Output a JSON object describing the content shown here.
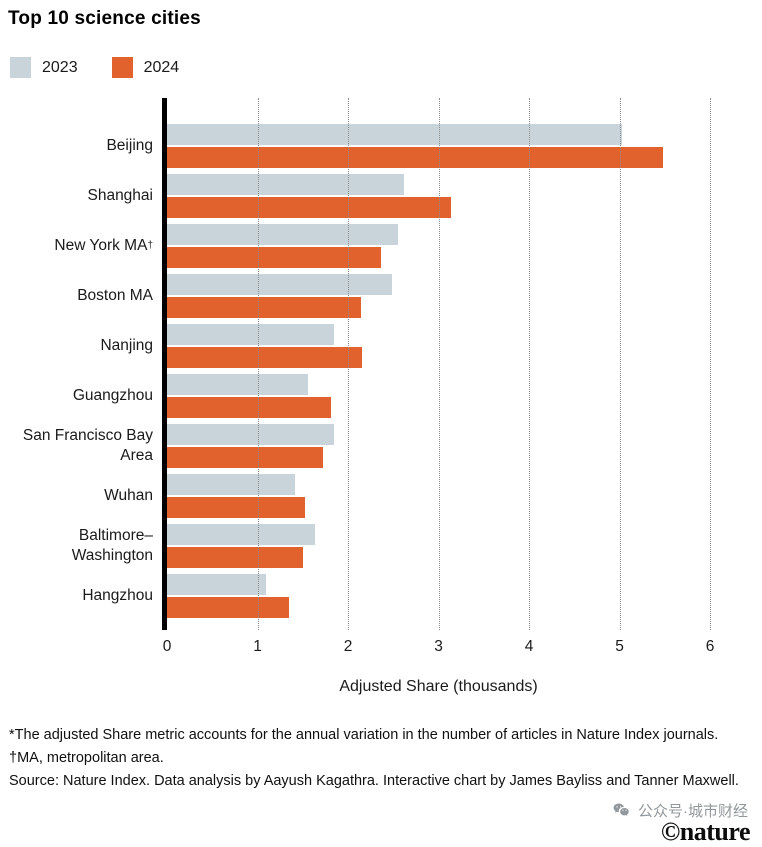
{
  "header": {
    "title": "Top 10 science cities"
  },
  "legend": [
    {
      "label": "2023",
      "color": "#c9d3da"
    },
    {
      "label": "2024",
      "color": "#e2622d"
    }
  ],
  "chart_data": {
    "type": "bar",
    "orientation": "horizontal",
    "title": "Top 10 science cities",
    "categories": [
      "Beijing",
      "Shanghai",
      "New York MA†",
      "Boston MA",
      "Nanjing",
      "Guangzhou",
      "San Francisco Bay Area",
      "Wuhan",
      "Baltimore–Washington",
      "Hangzhou"
    ],
    "series": [
      {
        "name": "2023",
        "color": "#c9d3da",
        "values": [
          5.03,
          2.62,
          2.55,
          2.49,
          1.84,
          1.56,
          1.85,
          1.41,
          1.64,
          1.09
        ]
      },
      {
        "name": "2024",
        "color": "#e2622d",
        "values": [
          5.48,
          3.14,
          2.36,
          2.14,
          2.15,
          1.81,
          1.72,
          1.52,
          1.5,
          1.35
        ]
      }
    ],
    "xlabel": "Adjusted Share (thousands)",
    "xlim": [
      0,
      6
    ],
    "xticks": [
      0,
      1,
      2,
      3,
      4,
      5,
      6
    ],
    "grid": "dotted-vertical",
    "legend_position": "top-left"
  },
  "footnotes": [
    "*The adjusted Share metric accounts for the annual variation in the number of articles in Nature Index journals.",
    "†MA, metropolitan area.",
    "Source: Nature Index. Data analysis by Aayush Kagathra. Interactive chart by James Bayliss and Tanner Maxwell."
  ],
  "watermark": {
    "wechat_label": "公众号·城市财经",
    "nature_logo": "©nature"
  }
}
